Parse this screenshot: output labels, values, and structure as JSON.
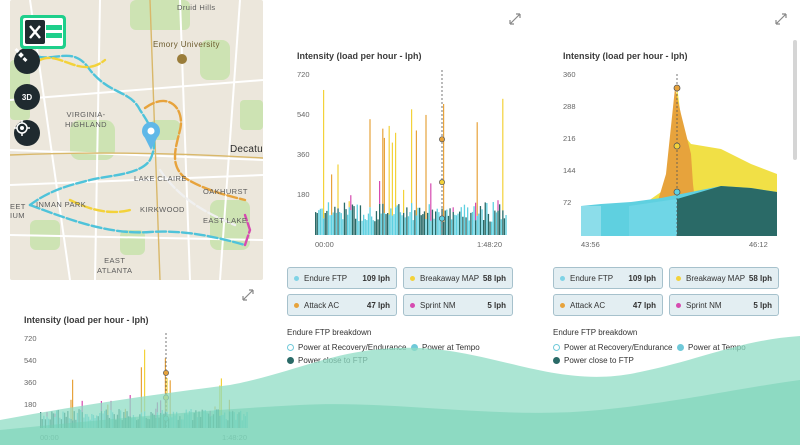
{
  "map": {
    "labels": {
      "druid_hills": "Druid Hills",
      "emory": "Emory University",
      "virginia_highland": "VIRGINIA-\nHIGHLAND",
      "decatur": "Decatur",
      "lake_claire": "LAKE CLAIRE",
      "oakhurst": "OAKHURST",
      "inman_park": "INMAN PARK",
      "kirkwood": "KIRKWOOD",
      "east_lake": "EAST LAKE",
      "eet": "EET",
      "ium": "IUM",
      "east_atlanta": "EAST\nATLANTA"
    },
    "buttons": {
      "satellite": "satellite-icon",
      "three_d": "3D",
      "locate": "locate-icon"
    }
  },
  "chart_main": {
    "title": "Intensity (load per hour - lph)",
    "yticks": [
      "720",
      "540",
      "360",
      "180"
    ],
    "xticks": [
      "00:00",
      "1:48:20"
    ]
  },
  "chart_zoom": {
    "title": "Intensity (load per hour - lph)",
    "yticks": [
      "360",
      "288",
      "216",
      "144",
      "72"
    ],
    "xticks": [
      "43:56",
      "46:12"
    ]
  },
  "chart_small": {
    "title": "Intensity (load per hour - lph)",
    "yticks": [
      "720",
      "540",
      "360",
      "180"
    ],
    "xticks": [
      "00:00",
      "1:48:20"
    ]
  },
  "metrics": [
    {
      "label": "Endure FTP",
      "value": "109 lph",
      "color": "#7fd3e6"
    },
    {
      "label": "Breakaway MAP",
      "value": "58 lph",
      "color": "#f3d23a"
    },
    {
      "label": "Attack AC",
      "value": "47 lph",
      "color": "#e7a33c"
    },
    {
      "label": "Sprint NM",
      "value": "5 lph",
      "color": "#d64bb0"
    }
  ],
  "breakdown": {
    "title": "Endure FTP breakdown",
    "items": [
      {
        "label": "Power at Recovery/Endurance",
        "color": "#ffffff"
      },
      {
        "label": "Power at Tempo",
        "color": "#6fc9d9"
      },
      {
        "label": "Power close to FTP",
        "color": "#2a6a67"
      }
    ]
  },
  "colors": {
    "teal_dark": "#2a6a67",
    "teal_light": "#5fd0e0",
    "yellow": "#f3d23a",
    "orange": "#e7a33c",
    "magenta": "#d64bb0",
    "wave": "#8fdcc4"
  }
}
